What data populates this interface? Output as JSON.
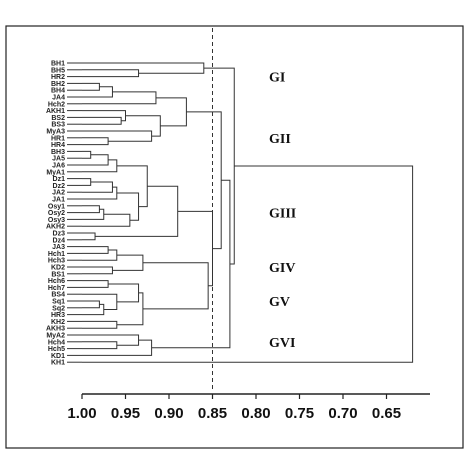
{
  "chart_data": {
    "type": "dendrogram",
    "leaves": [
      "BH1",
      "BH5",
      "HR2",
      "BH2",
      "BH4",
      "JA4",
      "Hch2",
      "AKH1",
      "BS2",
      "BS3",
      "MyA3",
      "HR1",
      "HR4",
      "BH3",
      "JA5",
      "JA6",
      "MyA1",
      "Dz1",
      "Dz2",
      "JA2",
      "JA1",
      "Osy1",
      "Osy2",
      "Osy3",
      "AKH2",
      "Dz3",
      "Dz4",
      "JA3",
      "Hch1",
      "Hch3",
      "KD2",
      "BS1",
      "Hch6",
      "Hch7",
      "BS4",
      "Sq1",
      "Sq2",
      "HR3",
      "KH2",
      "AKH3",
      "MyA2",
      "Hch4",
      "Hch5",
      "KD1",
      "KH1"
    ],
    "merges": [
      {
        "left": "BH5",
        "right": "HR2",
        "height": 0.935
      },
      {
        "left": "BH1",
        "right": "m0",
        "height": 0.86
      },
      {
        "left": "BH2",
        "right": "BH4",
        "height": 0.98
      },
      {
        "left": "m2",
        "right": "JA4",
        "height": 0.965
      },
      {
        "left": "m3",
        "right": "Hch2",
        "height": 0.915
      },
      {
        "left": "BS2",
        "right": "BS3",
        "height": 0.955
      },
      {
        "left": "AKH1",
        "right": "m5",
        "height": 0.95
      },
      {
        "left": "HR1",
        "right": "HR4",
        "height": 0.97
      },
      {
        "left": "MyA3",
        "right": "m7",
        "height": 0.92
      },
      {
        "left": "m6",
        "right": "m8",
        "height": 0.91
      },
      {
        "left": "m4",
        "right": "m9",
        "height": 0.88
      },
      {
        "left": "BH3",
        "right": "JA5",
        "height": 0.99
      },
      {
        "left": "m11",
        "right": "JA6",
        "height": 0.97
      },
      {
        "left": "m12",
        "right": "MyA1",
        "height": 0.96
      },
      {
        "left": "Dz1",
        "right": "Dz2",
        "height": 0.99
      },
      {
        "left": "m14",
        "right": "JA2",
        "height": 0.965
      },
      {
        "left": "m15",
        "right": "JA1",
        "height": 0.96
      },
      {
        "left": "Osy1",
        "right": "Osy2",
        "height": 0.98
      },
      {
        "left": "m17",
        "right": "Osy3",
        "height": 0.975
      },
      {
        "left": "m18",
        "right": "AKH2",
        "height": 0.945
      },
      {
        "left": "m16",
        "right": "m19",
        "height": 0.935
      },
      {
        "left": "m13",
        "right": "m20",
        "height": 0.925
      },
      {
        "left": "Dz3",
        "right": "Dz4",
        "height": 0.985
      },
      {
        "left": "m21",
        "right": "m22",
        "height": 0.89
      },
      {
        "left": "JA3",
        "right": "Hch1",
        "height": 0.97
      },
      {
        "left": "m24",
        "right": "Hch3",
        "height": 0.96
      },
      {
        "left": "KD2",
        "right": "BS1",
        "height": 0.965
      },
      {
        "left": "m25",
        "right": "m26",
        "height": 0.93
      },
      {
        "left": "Hch6",
        "right": "Hch7",
        "height": 0.97
      },
      {
        "left": "Sq1",
        "right": "Sq2",
        "height": 0.98
      },
      {
        "left": "m29",
        "right": "HR3",
        "height": 0.975
      },
      {
        "left": "BS4",
        "right": "m30",
        "height": 0.96
      },
      {
        "left": "m28",
        "right": "m31",
        "height": 0.935
      },
      {
        "left": "KH2",
        "right": "AKH3",
        "height": 0.96
      },
      {
        "left": "m32",
        "right": "m33",
        "height": 0.93
      },
      {
        "left": "m27",
        "right": "m34",
        "height": 0.855
      },
      {
        "left": "m23",
        "right": "m35",
        "height": 0.85
      },
      {
        "left": "m10",
        "right": "m36",
        "height": 0.84
      },
      {
        "left": "Hch4",
        "right": "Hch5",
        "height": 0.96
      },
      {
        "left": "MyA2",
        "right": "m38",
        "height": 0.935
      },
      {
        "left": "m39",
        "right": "KD1",
        "height": 0.92
      },
      {
        "left": "m40",
        "right": "m37",
        "height": 0.83
      },
      {
        "left": "m1",
        "right": "m41",
        "height": 0.825
      },
      {
        "left": "m42",
        "right": "KH1",
        "height": 0.62
      }
    ],
    "xlim": [
      1.0,
      0.61
    ],
    "x_ticks": [
      "1.00",
      "0.95",
      "0.90",
      "0.85",
      "0.80",
      "0.75",
      "0.70",
      "0.65"
    ],
    "x_tick_values": [
      1.0,
      0.95,
      0.9,
      0.85,
      0.8,
      0.75,
      0.7,
      0.65
    ],
    "cutoff": 0.85,
    "groups": [
      {
        "label": "GI",
        "anchor_leaf": "HR2"
      },
      {
        "label": "GII",
        "anchor_leaf": "HR1"
      },
      {
        "label": "GIII",
        "anchor_leaf": "Osy2"
      },
      {
        "label": "GIV",
        "anchor_leaf": "KD2"
      },
      {
        "label": "GV",
        "anchor_leaf": "Sq1"
      },
      {
        "label": "GVI",
        "anchor_leaf": "Hch4"
      }
    ],
    "grid": false,
    "legend": "none",
    "colors": {
      "lines": "#333333",
      "cutoff": "#333333",
      "text": "#111111"
    }
  }
}
